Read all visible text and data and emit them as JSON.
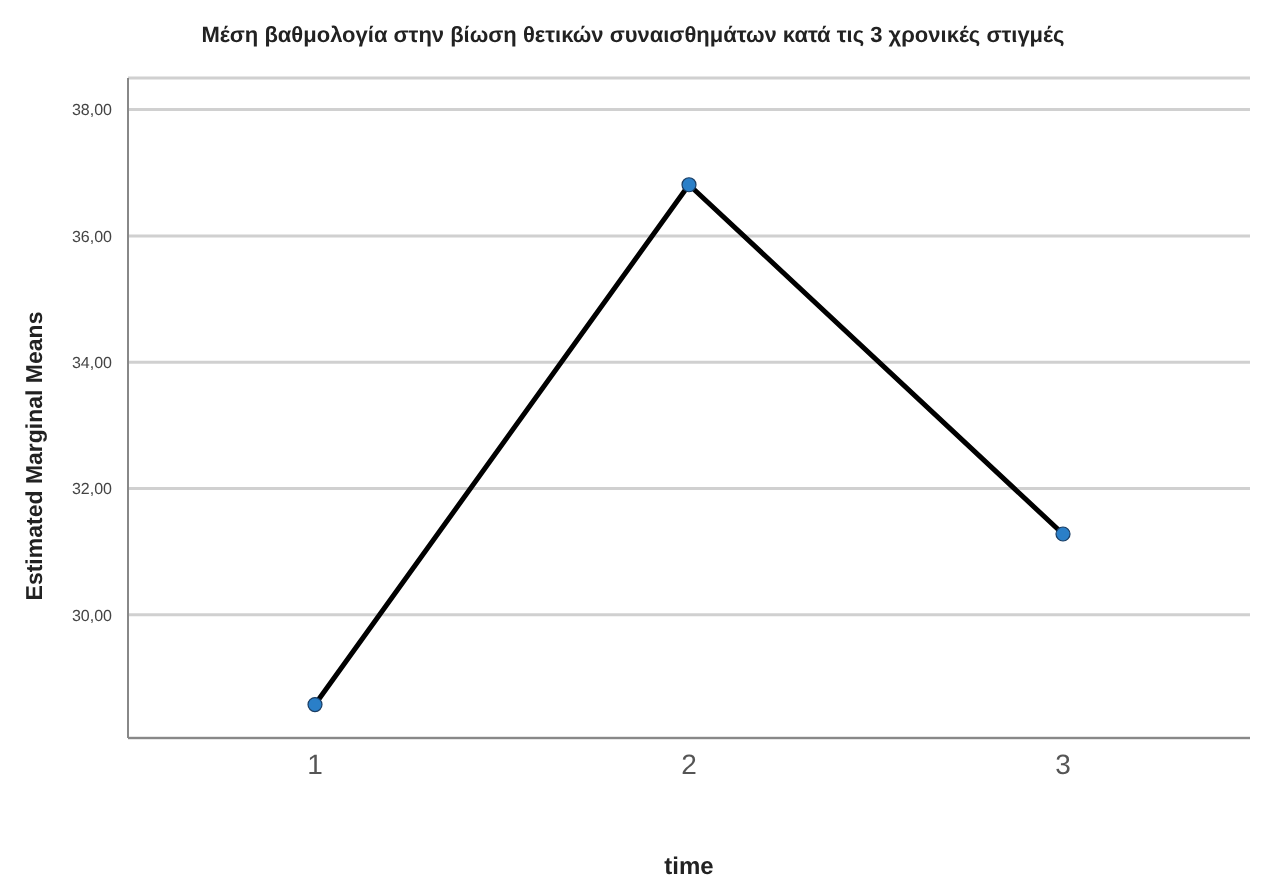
{
  "chart_data": {
    "type": "line",
    "title": "Μέση βαθμολογία στην βίωση θετικών συναισθημάτων κατά τις 3 χρονικές στιγμές",
    "xlabel": "time",
    "ylabel": "Estimated Marginal Means",
    "categories": [
      "1",
      "2",
      "3"
    ],
    "series": [
      {
        "color": "#000000",
        "colors": [
          "#2a7fc8",
          "#2a7fc8",
          "#2a7fc8"
        ],
        "values": [
          28.58,
          36.81,
          31.28
        ]
      }
    ],
    "ylim": [
      28.05,
      38.5
    ],
    "yticks": [
      {
        "value": 30,
        "label": "30,00"
      },
      {
        "value": 32,
        "label": "32,00"
      },
      {
        "value": 34,
        "label": "34,00"
      },
      {
        "value": 36,
        "label": "36,00"
      },
      {
        "value": 38,
        "label": "38,00"
      }
    ],
    "grid": "y",
    "marker": "circle",
    "line_style": "solid"
  }
}
